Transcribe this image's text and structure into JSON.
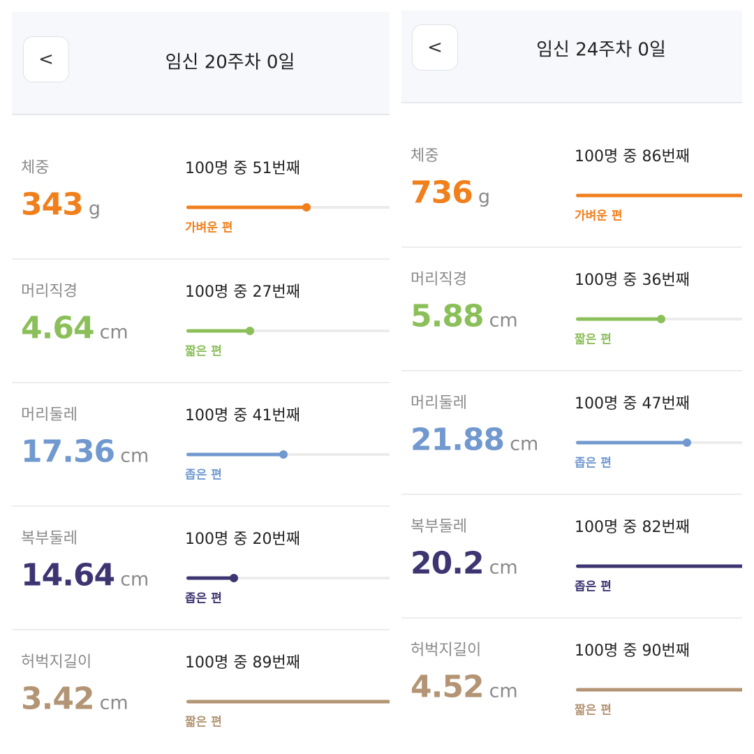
{
  "panels": [
    {
      "title": "임신 20주차 0일",
      "back": "<",
      "rows": [
        {
          "label": "체중",
          "value": "343",
          "unit": "g",
          "rank_text": "100명 중 51번째",
          "rank": 51,
          "tag": "가벼운 편",
          "color": "#f07f1c"
        },
        {
          "label": "머리직경",
          "value": "4.64",
          "unit": "cm",
          "rank_text": "100명 중 27번째",
          "rank": 27,
          "tag": "짧은 편",
          "color": "#8bbf59"
        },
        {
          "label": "머리둘레",
          "value": "17.36",
          "unit": "cm",
          "rank_text": "100명 중 41번째",
          "rank": 41,
          "tag": "좁은 편",
          "color": "#7199cf"
        },
        {
          "label": "복부둘레",
          "value": "14.64",
          "unit": "cm",
          "rank_text": "100명 중 20번째",
          "rank": 20,
          "tag": "좁은 편",
          "color": "#3d3571"
        },
        {
          "label": "허벅지길이",
          "value": "3.42",
          "unit": "cm",
          "rank_text": "100명 중 89번째",
          "rank": 89,
          "tag": "짧은 편",
          "color": "#b39474"
        }
      ]
    },
    {
      "title": "임신 24주차 0일",
      "back": "<",
      "rows": [
        {
          "label": "체중",
          "value": "736",
          "unit": "g",
          "rank_text": "100명 중 86번째",
          "rank": 86,
          "tag": "가벼운 편",
          "color": "#f07f1c"
        },
        {
          "label": "머리직경",
          "value": "5.88",
          "unit": "cm",
          "rank_text": "100명 중 36번째",
          "rank": 36,
          "tag": "짧은 편",
          "color": "#8bbf59"
        },
        {
          "label": "머리둘레",
          "value": "21.88",
          "unit": "cm",
          "rank_text": "100명 중 47번째",
          "rank": 47,
          "tag": "좁은 편",
          "color": "#7199cf"
        },
        {
          "label": "복부둘레",
          "value": "20.2",
          "unit": "cm",
          "rank_text": "100명 중 82번째",
          "rank": 82,
          "tag": "좁은 편",
          "color": "#3d3571"
        },
        {
          "label": "허벅지길이",
          "value": "4.52",
          "unit": "cm",
          "rank_text": "100명 중 90번째",
          "rank": 90,
          "tag": "짧은 편",
          "color": "#b39474"
        }
      ]
    }
  ]
}
